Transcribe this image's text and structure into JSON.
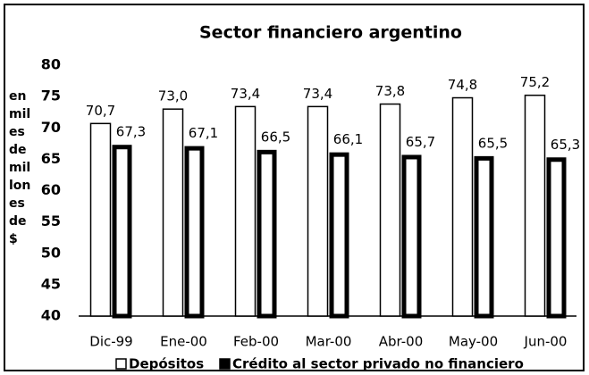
{
  "chart_data": {
    "type": "bar",
    "title": "Sector financiero argentino",
    "y_label": [
      "en",
      "mil",
      "es",
      "de",
      "mil",
      "lon",
      "es",
      "de",
      "$"
    ],
    "categories": [
      "Dic-99",
      "Ene-00",
      "Feb-00",
      "Mar-00",
      "Abr-00",
      "May-00",
      "Jun-00"
    ],
    "series": [
      {
        "name": "Depósitos",
        "color": "#ffffff",
        "values": [
          70.7,
          73.0,
          73.4,
          73.4,
          73.8,
          74.8,
          75.2
        ],
        "value_labels": [
          "70,7",
          "73,0",
          "73,4",
          "73,4",
          "73,8",
          "74,8",
          "75,2"
        ]
      },
      {
        "name": "Crédito al sector privado no financiero",
        "color": "#000000",
        "values": [
          67.3,
          67.1,
          66.5,
          66.1,
          65.7,
          65.5,
          65.3
        ],
        "value_labels": [
          "67,3",
          "67,1",
          "66,5",
          "66,1",
          "65,7",
          "65,5",
          "65,3"
        ]
      }
    ],
    "ylim": [
      40,
      80
    ],
    "yticks": [
      40,
      45,
      50,
      55,
      60,
      65,
      70,
      75,
      80
    ],
    "legend": "bottom"
  }
}
